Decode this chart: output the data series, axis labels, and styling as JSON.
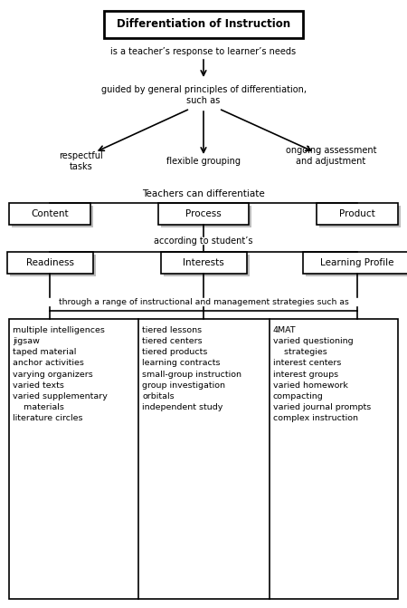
{
  "title": "Differentiation of Instruction",
  "line1": "is a teacher’s response to learner’s needs",
  "line2": "guided by general principles of differentiation,\nsuch as",
  "left_branch": "respectful\ntasks",
  "mid_branch": "flexible grouping",
  "right_branch": "ongoing assessment\nand adjustment",
  "teachers_line": "Teachers can differentiate",
  "boxes_row1": [
    "Content",
    "Process",
    "Product"
  ],
  "student_line": "according to student’s",
  "boxes_row2": [
    "Readiness",
    "Interests",
    "Learning Profile"
  ],
  "strategies_line": "through a range of instructional and management strategies such as",
  "col1_text": "multiple intelligences\njigsaw\ntaped material\nanchor activities\nvarying organizers\nvaried texts\nvaried supplementary\n    materials\nliterature circles",
  "col2_text": "tiered lessons\ntiered centers\ntiered products\nlearning contracts\nsmall-group instruction\ngroup investigation\norbitals\nindependent study",
  "col3_text": "4MAT\nvaried questioning\n    strategies\ninterest centers\ninterest groups\nvaried homework\ncompacting\nvaried journal prompts\ncomplex instruction",
  "bg_color": "#ffffff",
  "text_color": "#000000",
  "box_edge_color": "#000000",
  "shadow_color": "#bbbbbb",
  "font_size_title": 8.5,
  "font_size_body": 7.0,
  "font_size_box": 7.5,
  "font_size_col": 6.8
}
